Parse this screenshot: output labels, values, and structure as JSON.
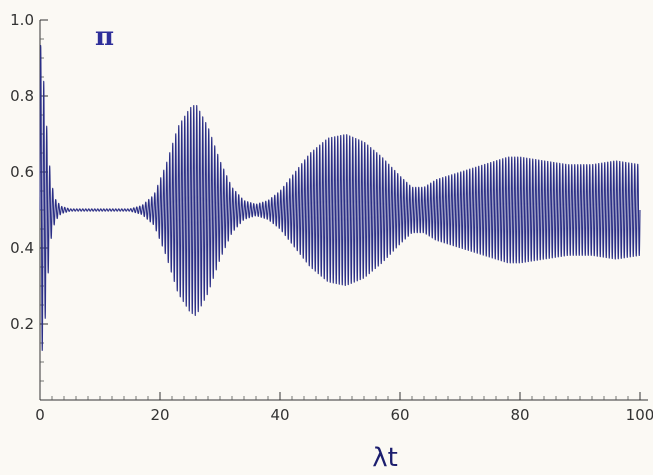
{
  "chart_data": {
    "type": "line",
    "title": "",
    "xlabel": "λt",
    "ylabel": "π",
    "xlim": [
      0,
      100
    ],
    "ylim": [
      0,
      1.0
    ],
    "x_ticks": [
      0,
      20,
      40,
      60,
      80,
      100
    ],
    "y_ticks": [
      0.2,
      0.4,
      0.6,
      0.8,
      1.0
    ],
    "x_tick_labels": [
      "0",
      "20",
      "40",
      "60",
      "80",
      "100"
    ],
    "y_tick_labels": [
      "0.2",
      "0.4",
      "0.6",
      "0.8",
      "1.0"
    ],
    "grid": false,
    "line_color": "#2b2f86",
    "baseline": 0.5,
    "oscillation_period": 0.5,
    "series": [
      {
        "envelope_x": [
          0,
          0.3,
          0.7,
          1.2,
          1.8,
          2.5,
          3.5,
          5,
          15,
          17,
          19,
          21,
          23,
          25,
          26,
          28,
          30,
          32,
          34,
          36,
          38,
          40,
          42,
          45,
          48,
          51,
          54,
          57,
          60,
          62,
          64,
          66,
          70,
          74,
          78,
          80,
          84,
          88,
          92,
          96,
          100
        ],
        "envelope_amp": [
          0.47,
          0.38,
          0.33,
          0.2,
          0.08,
          0.03,
          0.01,
          0.003,
          0.003,
          0.012,
          0.04,
          0.12,
          0.22,
          0.27,
          0.28,
          0.22,
          0.13,
          0.06,
          0.025,
          0.015,
          0.025,
          0.05,
          0.09,
          0.15,
          0.19,
          0.2,
          0.18,
          0.14,
          0.09,
          0.06,
          0.06,
          0.08,
          0.1,
          0.12,
          0.14,
          0.14,
          0.13,
          0.12,
          0.12,
          0.13,
          0.12
        ]
      }
    ]
  }
}
